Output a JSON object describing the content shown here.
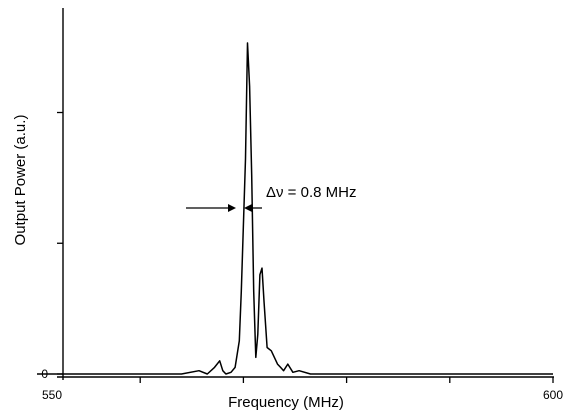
{
  "chart_data": {
    "type": "line",
    "title": "",
    "xlabel": "Frequency (MHz)",
    "ylabel": "Output Power (a.u.)",
    "xlim": [
      550,
      600
    ],
    "ylim": [
      -0.05,
      1.1
    ],
    "x_ticks": [
      550,
      560,
      570,
      580,
      590,
      600
    ],
    "x_tick_labels": [
      "550",
      "600"
    ],
    "y_ticks": [
      0,
      0.395,
      0.79
    ],
    "y_tick_labels": [
      "0"
    ],
    "grid": false,
    "legend": "none",
    "annotation": {
      "text": "Δν = 0.8 MHz",
      "x": 570.5
    },
    "series": [
      {
        "x": [
          550,
          564,
          565.7,
          566.5,
          567.2,
          567.7,
          568.0,
          568.3,
          568.8,
          569.2,
          569.6,
          569.8,
          570.0,
          570.2,
          570.4,
          570.6,
          570.8,
          571.0,
          571.2,
          571.4,
          571.6,
          571.8,
          572.0,
          572.3,
          572.7,
          573.0,
          573.3,
          573.6,
          573.9,
          574.3,
          574.8,
          575.4,
          576.5,
          578,
          590,
          600
        ],
        "values": [
          0,
          0,
          0.01,
          0,
          0.02,
          0.04,
          0.01,
          0,
          0.005,
          0.02,
          0.1,
          0.25,
          0.45,
          0.65,
          1.0,
          0.87,
          0.6,
          0.25,
          0.05,
          0.12,
          0.3,
          0.32,
          0.22,
          0.08,
          0.07,
          0.05,
          0.03,
          0.02,
          0.01,
          0.03,
          0.005,
          0.01,
          0,
          0,
          0,
          0
        ]
      }
    ]
  }
}
